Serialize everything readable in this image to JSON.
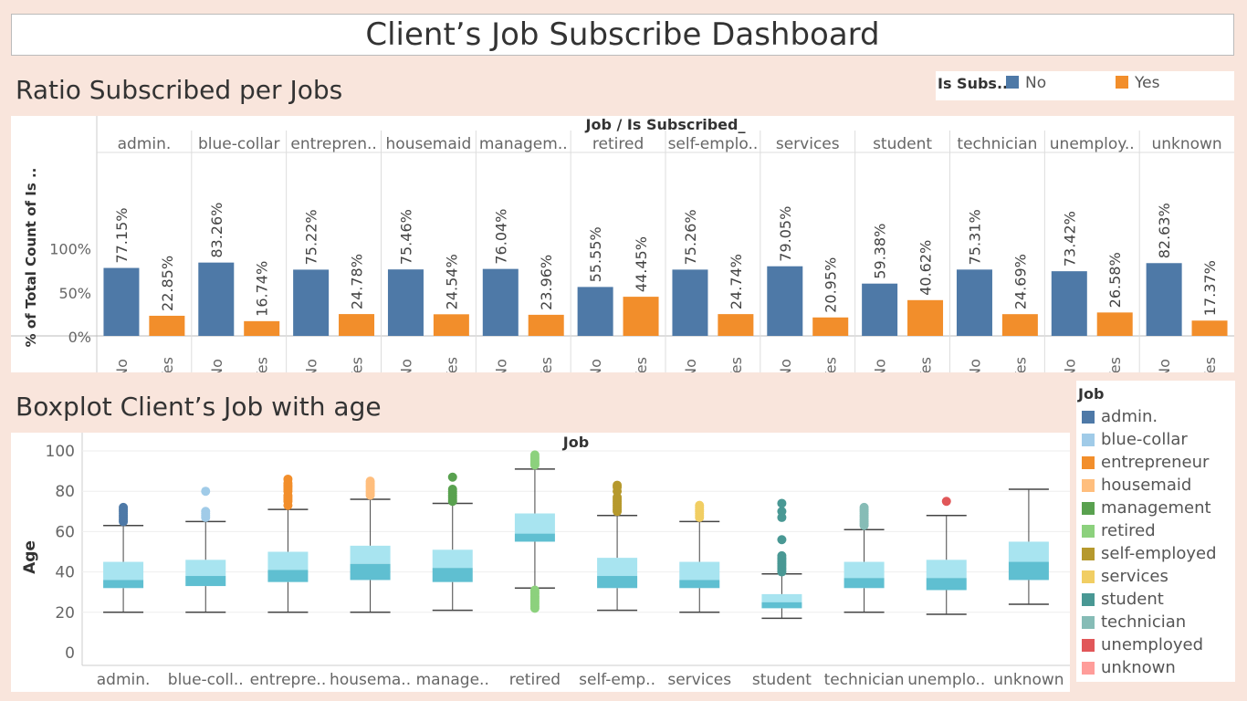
{
  "header": {
    "title": "Client’s Job Subscribe Dashboard"
  },
  "bar_section": {
    "title": "Ratio Subscribed per Jobs"
  },
  "box_section": {
    "title": "Boxplot Client’s Job with age"
  },
  "legend_subscribed": {
    "title": "Is Subs..",
    "items": [
      {
        "label": "No",
        "color": "#4e79a7"
      },
      {
        "label": "Yes",
        "color": "#f28e2b"
      }
    ]
  },
  "legend_job": {
    "title": "Job",
    "items": [
      {
        "label": "admin.",
        "color": "#4e79a7"
      },
      {
        "label": "blue-collar",
        "color": "#a0cbe8"
      },
      {
        "label": "entrepreneur",
        "color": "#f28e2b"
      },
      {
        "label": "housemaid",
        "color": "#ffbe7d"
      },
      {
        "label": "management",
        "color": "#59a14f"
      },
      {
        "label": "retired",
        "color": "#8cd17d"
      },
      {
        "label": "self-employed",
        "color": "#b6992d"
      },
      {
        "label": "services",
        "color": "#f1ce63"
      },
      {
        "label": "student",
        "color": "#499894"
      },
      {
        "label": "technician",
        "color": "#86bcb6"
      },
      {
        "label": "unemployed",
        "color": "#e15759"
      },
      {
        "label": "unknown",
        "color": "#ff9d9a"
      }
    ]
  },
  "chart_data": [
    {
      "type": "bar",
      "header_label": "Job  /  Is Subscribed_",
      "ylabel": "% of Total Count of Is ..",
      "ylim": [
        0,
        130
      ],
      "yticks": [
        "0%",
        "50%",
        "100%"
      ],
      "ytick_values": [
        0,
        50,
        100
      ],
      "x_categories": [
        "No",
        "Yes"
      ],
      "groups": [
        {
          "label": "admin.",
          "no": 77.15,
          "yes": 22.85,
          "no_text": "77.15%",
          "yes_text": "22.85%"
        },
        {
          "label": "blue-collar",
          "no": 83.26,
          "yes": 16.74,
          "no_text": "83.26%",
          "yes_text": "16.74%"
        },
        {
          "label": "entrepren..",
          "no": 75.22,
          "yes": 24.78,
          "no_text": "75.22%",
          "yes_text": "24.78%"
        },
        {
          "label": "housemaid",
          "no": 75.46,
          "yes": 24.54,
          "no_text": "75.46%",
          "yes_text": "24.54%"
        },
        {
          "label": "managem..",
          "no": 76.04,
          "yes": 23.96,
          "no_text": "76.04%",
          "yes_text": "23.96%"
        },
        {
          "label": "retired",
          "no": 55.55,
          "yes": 44.45,
          "no_text": "55.55%",
          "yes_text": "44.45%"
        },
        {
          "label": "self-emplo..",
          "no": 75.26,
          "yes": 24.74,
          "no_text": "75.26%",
          "yes_text": "24.74%"
        },
        {
          "label": "services",
          "no": 79.05,
          "yes": 20.95,
          "no_text": "79.05%",
          "yes_text": "20.95%"
        },
        {
          "label": "student",
          "no": 59.38,
          "yes": 40.62,
          "no_text": "59.38%",
          "yes_text": "40.62%"
        },
        {
          "label": "technician",
          "no": 75.31,
          "yes": 24.69,
          "no_text": "75.31%",
          "yes_text": "24.69%"
        },
        {
          "label": "unemploy..",
          "no": 73.42,
          "yes": 26.58,
          "no_text": "73.42%",
          "yes_text": "26.58%"
        },
        {
          "label": "unknown",
          "no": 82.63,
          "yes": 17.37,
          "no_text": "82.63%",
          "yes_text": "17.37%"
        }
      ],
      "colors": {
        "no": "#4e79a7",
        "yes": "#f28e2b"
      }
    },
    {
      "type": "boxplot",
      "title": "Job",
      "ylabel": "Age",
      "ylim": [
        0,
        102
      ],
      "yticks": [
        0,
        20,
        40,
        60,
        80,
        100
      ],
      "box_colors": {
        "upper": "#a8e4f0",
        "lower": "#5fbfd1"
      },
      "series": [
        {
          "label": "admin.",
          "color": "#4e79a7",
          "min": 20,
          "q1": 32,
          "median": 36,
          "q3": 45,
          "max": 63,
          "outliers": [
            65,
            66,
            67,
            68,
            69,
            70,
            71,
            72
          ]
        },
        {
          "label": "blue-coll..",
          "color": "#a0cbe8",
          "min": 20,
          "q1": 33,
          "median": 38,
          "q3": 46,
          "max": 65,
          "outliers": [
            67,
            68,
            69,
            70,
            80
          ]
        },
        {
          "label": "entrepre..",
          "color": "#f28e2b",
          "min": 20,
          "q1": 35,
          "median": 41,
          "q3": 50,
          "max": 71,
          "outliers": [
            73,
            75,
            76,
            77,
            78,
            80,
            81,
            82,
            83,
            84,
            86
          ]
        },
        {
          "label": "housema..",
          "color": "#ffbe7d",
          "min": 20,
          "q1": 36,
          "median": 44,
          "q3": 53,
          "max": 76,
          "outliers": [
            78,
            79,
            80,
            81,
            82,
            83,
            84,
            85
          ]
        },
        {
          "label": "manage..",
          "color": "#59a14f",
          "min": 21,
          "q1": 35,
          "median": 42,
          "q3": 51,
          "max": 74,
          "outliers": [
            75,
            76,
            77,
            78,
            79,
            80,
            81,
            87
          ]
        },
        {
          "label": "retired",
          "color": "#8cd17d",
          "min": 32,
          "q1": 55,
          "median": 59,
          "q3": 69,
          "max": 91,
          "outliers": [
            22,
            23,
            24,
            25,
            26,
            27,
            28,
            29,
            30,
            31,
            93,
            94,
            95,
            96,
            97,
            98
          ]
        },
        {
          "label": "self-emp..",
          "color": "#b6992d",
          "min": 21,
          "q1": 32,
          "median": 38,
          "q3": 47,
          "max": 68,
          "outliers": [
            70,
            71,
            72,
            73,
            74,
            75,
            76,
            77,
            80,
            82,
            83
          ]
        },
        {
          "label": "services",
          "color": "#f1ce63",
          "min": 20,
          "q1": 32,
          "median": 36,
          "q3": 45,
          "max": 65,
          "outliers": [
            67,
            68,
            69,
            70,
            71,
            72,
            73
          ]
        },
        {
          "label": "student",
          "color": "#499894",
          "min": 17,
          "q1": 22,
          "median": 25,
          "q3": 29,
          "max": 39,
          "outliers": [
            40,
            41,
            42,
            43,
            44,
            45,
            46,
            47,
            48,
            56,
            67,
            70,
            74
          ]
        },
        {
          "label": "technician",
          "color": "#86bcb6",
          "min": 20,
          "q1": 32,
          "median": 37,
          "q3": 45,
          "max": 61,
          "outliers": [
            63,
            64,
            65,
            66,
            67,
            68,
            69,
            70,
            71,
            72
          ]
        },
        {
          "label": "unemplo..",
          "color": "#e15759",
          "min": 19,
          "q1": 31,
          "median": 37,
          "q3": 46,
          "max": 68,
          "outliers": [
            75
          ]
        },
        {
          "label": "unknown",
          "color": "#ff9d9a",
          "min": 24,
          "q1": 36,
          "median": 45,
          "q3": 55,
          "max": 81,
          "outliers": []
        }
      ]
    }
  ]
}
